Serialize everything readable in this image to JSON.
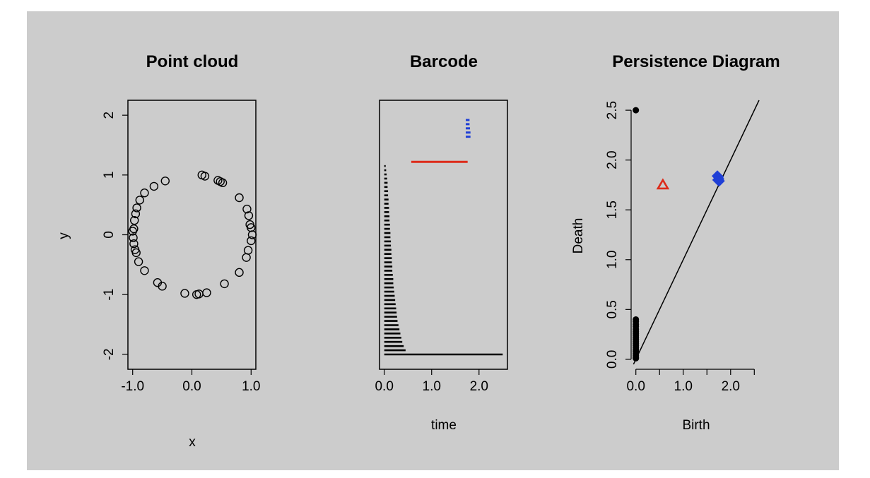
{
  "background_color": "#cccccc",
  "chart_data": [
    {
      "type": "scatter",
      "title": "Point cloud",
      "xlabel": "x",
      "ylabel": "y",
      "xlim": [
        -1.08,
        1.08
      ],
      "ylim": [
        -2.25,
        2.25
      ],
      "xticks": [
        "-1.0",
        "0.0",
        "1.0"
      ],
      "yticks": [
        "-2",
        "-1",
        "0",
        "1",
        "2"
      ],
      "marker": "open-circle",
      "color": "#000000",
      "points": [
        {
          "x": -0.98,
          "y": 0.1
        },
        {
          "x": -0.97,
          "y": 0.24
        },
        {
          "x": -0.95,
          "y": 0.35
        },
        {
          "x": -0.93,
          "y": 0.45
        },
        {
          "x": -0.88,
          "y": 0.58
        },
        {
          "x": -0.8,
          "y": 0.7
        },
        {
          "x": -0.64,
          "y": 0.81
        },
        {
          "x": -0.45,
          "y": 0.9
        },
        {
          "x": -1.0,
          "y": 0.06
        },
        {
          "x": -0.99,
          "y": -0.05
        },
        {
          "x": -0.98,
          "y": -0.15
        },
        {
          "x": -0.96,
          "y": -0.25
        },
        {
          "x": -0.94,
          "y": -0.3
        },
        {
          "x": -0.9,
          "y": -0.45
        },
        {
          "x": -0.8,
          "y": -0.6
        },
        {
          "x": -0.58,
          "y": -0.8
        },
        {
          "x": -0.5,
          "y": -0.86
        },
        {
          "x": -0.12,
          "y": -0.98
        },
        {
          "x": 0.08,
          "y": -1.0
        },
        {
          "x": 0.12,
          "y": -0.99
        },
        {
          "x": 0.25,
          "y": -0.97
        },
        {
          "x": 0.55,
          "y": -0.82
        },
        {
          "x": 0.8,
          "y": -0.63
        },
        {
          "x": 0.92,
          "y": -0.38
        },
        {
          "x": 0.95,
          "y": -0.26
        },
        {
          "x": 1.0,
          "y": -0.1
        },
        {
          "x": 1.02,
          "y": 0.0
        },
        {
          "x": 1.0,
          "y": 0.12
        },
        {
          "x": 0.98,
          "y": 0.17
        },
        {
          "x": 0.96,
          "y": 0.32
        },
        {
          "x": 0.93,
          "y": 0.43
        },
        {
          "x": 0.8,
          "y": 0.62
        },
        {
          "x": 0.52,
          "y": 0.87
        },
        {
          "x": 0.48,
          "y": 0.89
        },
        {
          "x": 0.44,
          "y": 0.91
        },
        {
          "x": 0.22,
          "y": 0.98
        },
        {
          "x": 0.17,
          "y": 1.0
        }
      ]
    },
    {
      "type": "bar",
      "title": "Barcode",
      "xlabel": "time",
      "ylabel": "",
      "xlim": [
        -0.1,
        2.6
      ],
      "xticks": [
        "0.0",
        "1.0",
        "2.0"
      ],
      "rows": 58,
      "groups": [
        {
          "dimension": 0,
          "color": "#000000",
          "count": 46,
          "row_start": 0,
          "births": [
            0.0
          ],
          "deaths": [
            2.5,
            0.45,
            0.41,
            0.38,
            0.36,
            0.34,
            0.32,
            0.3,
            0.28,
            0.27,
            0.26,
            0.25,
            0.24,
            0.23,
            0.22,
            0.21,
            0.2,
            0.19,
            0.19,
            0.18,
            0.17,
            0.17,
            0.16,
            0.16,
            0.15,
            0.15,
            0.14,
            0.14,
            0.13,
            0.13,
            0.12,
            0.12,
            0.11,
            0.11,
            0.1,
            0.1,
            0.09,
            0.09,
            0.08,
            0.08,
            0.07,
            0.07,
            0.06,
            0.05,
            0.04,
            0.03
          ]
        },
        {
          "dimension": 1,
          "color": "#dd2b1a",
          "count": 1,
          "row_start": 46,
          "births": [
            0.57
          ],
          "deaths": [
            1.76
          ]
        },
        {
          "dimension": 2,
          "color": "#1f3fd6",
          "count": 5,
          "row_start": 52,
          "births": [
            1.72
          ],
          "deaths": [
            1.82,
            1.82,
            1.81,
            1.8,
            1.8
          ]
        }
      ]
    },
    {
      "type": "scatter",
      "title": "Persistence Diagram",
      "xlabel": "Birth",
      "ylabel": "Death",
      "xlim": [
        -0.1,
        2.6
      ],
      "ylim": [
        -0.1,
        2.6
      ],
      "xticks": [
        "0.0",
        "1.0",
        "2.0"
      ],
      "yticks": [
        "0.0",
        "0.5",
        "1.0",
        "1.5",
        "2.0",
        "2.5"
      ],
      "diagonal": true,
      "series": [
        {
          "dimension": 0,
          "marker": "filled-circle",
          "color": "#000000",
          "points": [
            {
              "x": 0.0,
              "y": 2.5
            },
            {
              "x": 0.0,
              "y": 0.4
            },
            {
              "x": 0.0,
              "y": 0.38
            },
            {
              "x": 0.0,
              "y": 0.35
            },
            {
              "x": 0.0,
              "y": 0.33
            },
            {
              "x": 0.0,
              "y": 0.3
            },
            {
              "x": 0.0,
              "y": 0.28
            },
            {
              "x": 0.0,
              "y": 0.26
            },
            {
              "x": 0.0,
              "y": 0.24
            },
            {
              "x": 0.0,
              "y": 0.22
            },
            {
              "x": 0.0,
              "y": 0.2
            },
            {
              "x": 0.0,
              "y": 0.18
            },
            {
              "x": 0.0,
              "y": 0.16
            },
            {
              "x": 0.0,
              "y": 0.14
            },
            {
              "x": 0.0,
              "y": 0.12
            },
            {
              "x": 0.0,
              "y": 0.1
            },
            {
              "x": 0.0,
              "y": 0.08
            },
            {
              "x": 0.0,
              "y": 0.06
            },
            {
              "x": 0.0,
              "y": 0.04
            },
            {
              "x": 0.0,
              "y": 0.02
            },
            {
              "x": 0.0,
              "y": 0.01
            }
          ]
        },
        {
          "dimension": 1,
          "marker": "open-triangle",
          "color": "#dd2b1a",
          "points": [
            {
              "x": 0.57,
              "y": 1.75
            }
          ]
        },
        {
          "dimension": 2,
          "marker": "filled-diamond",
          "color": "#1f3fd6",
          "points": [
            {
              "x": 1.72,
              "y": 1.84
            },
            {
              "x": 1.74,
              "y": 1.83
            },
            {
              "x": 1.75,
              "y": 1.81
            },
            {
              "x": 1.73,
              "y": 1.8
            },
            {
              "x": 1.76,
              "y": 1.79
            }
          ]
        }
      ]
    }
  ]
}
